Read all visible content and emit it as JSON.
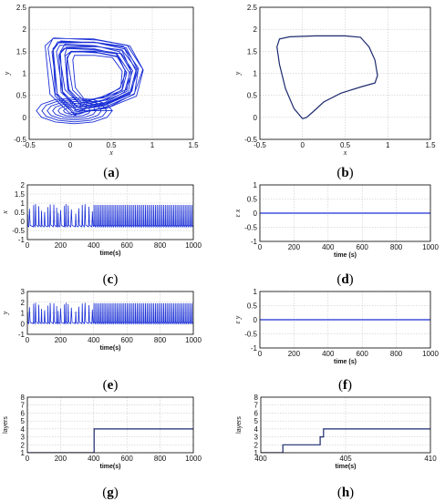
{
  "chart_data": [
    {
      "id": "a",
      "type": "line",
      "xlabel": "x",
      "ylabel": "y",
      "xlim": [
        -0.5,
        1.5
      ],
      "ylim": [
        -0.5,
        2.5
      ],
      "xticks": [
        "-0.5",
        "0",
        "0.5",
        "1",
        "1.5"
      ],
      "yticks": [
        "-0.5",
        "0",
        "0.5",
        "1",
        "1.5",
        "2",
        "2.5"
      ],
      "grid": true,
      "color": "#1a2fd6",
      "series": [
        {
          "name": "",
          "kind": "attractor",
          "values": [
            [
              0.0,
              0.0
            ],
            [
              -0.28,
              1.8
            ],
            [
              0.75,
              1.75
            ],
            [
              0.85,
              0.8
            ],
            [
              0.3,
              0.15
            ],
            [
              0.0,
              0.0
            ]
          ]
        }
      ]
    },
    {
      "id": "b",
      "type": "line",
      "xlabel": "x",
      "ylabel": "y",
      "xlim": [
        -0.5,
        1.5
      ],
      "ylim": [
        -0.5,
        2.5
      ],
      "xticks": [
        "-0.5",
        "0",
        "0.5",
        "1",
        "1.5"
      ],
      "yticks": [
        "-0.5",
        "0",
        "0.5",
        "1",
        "1.5",
        "2",
        "2.5"
      ],
      "grid": true,
      "color": "#1c2a6e",
      "series": [
        {
          "name": "",
          "values": [
            [
              0.0,
              -0.03
            ],
            [
              -0.1,
              0.2
            ],
            [
              -0.2,
              0.65
            ],
            [
              -0.27,
              1.2
            ],
            [
              -0.3,
              1.6
            ],
            [
              -0.27,
              1.78
            ],
            [
              -0.15,
              1.83
            ],
            [
              0.15,
              1.85
            ],
            [
              0.5,
              1.85
            ],
            [
              0.68,
              1.82
            ],
            [
              0.78,
              1.6
            ],
            [
              0.85,
              1.3
            ],
            [
              0.88,
              0.95
            ],
            [
              0.85,
              0.78
            ],
            [
              0.7,
              0.7
            ],
            [
              0.45,
              0.55
            ],
            [
              0.25,
              0.35
            ],
            [
              0.12,
              0.12
            ],
            [
              0.05,
              0.0
            ],
            [
              0.0,
              -0.03
            ]
          ]
        }
      ]
    },
    {
      "id": "c",
      "type": "line",
      "xlabel": "time(s)",
      "ylabel": "x",
      "xlim": [
        0,
        1000
      ],
      "ylim": [
        -1,
        2
      ],
      "xticks": [
        "0",
        "200",
        "400",
        "600",
        "800",
        "1000"
      ],
      "yticks": [
        "-1",
        "-0.5",
        "0",
        "0.5",
        "1",
        "1.5",
        "2"
      ],
      "grid": true,
      "color": "#1a2fd6",
      "series": [
        {
          "name": "",
          "kind": "oscillation",
          "segments": [
            {
              "t": [
                0,
                400
              ],
              "low": -0.3,
              "high": 0.95,
              "period": 19,
              "irregular": true
            },
            {
              "t": [
                400,
                1000
              ],
              "low": -0.3,
              "high": 0.9,
              "period": 10,
              "irregular": false
            }
          ]
        }
      ]
    },
    {
      "id": "d",
      "type": "line",
      "xlabel": "time (s)",
      "ylabel": "ε x",
      "xlim": [
        0,
        1000
      ],
      "ylim": [
        -1,
        1
      ],
      "xticks": [
        "0",
        "200",
        "400",
        "600",
        "800",
        "1000"
      ],
      "yticks": [
        "-1",
        "-0.5",
        "0",
        "0.5",
        "1"
      ],
      "grid": true,
      "color": "#1a2fd6",
      "series": [
        {
          "name": "",
          "values": [
            [
              0,
              0
            ],
            [
              1000,
              0
            ]
          ]
        }
      ]
    },
    {
      "id": "e",
      "type": "line",
      "xlabel": "time(s)",
      "ylabel": "y",
      "xlim": [
        0,
        1000
      ],
      "ylim": [
        -1,
        3
      ],
      "xticks": [
        "0",
        "200",
        "400",
        "600",
        "800",
        "1000"
      ],
      "yticks": [
        "-1",
        "0",
        "1",
        "2",
        "3"
      ],
      "grid": true,
      "color": "#1a2fd6",
      "series": [
        {
          "name": "",
          "kind": "oscillation",
          "segments": [
            {
              "t": [
                0,
                400
              ],
              "low": 0.0,
              "high": 1.95,
              "period": 19,
              "irregular": true
            },
            {
              "t": [
                400,
                1000
              ],
              "low": 0.0,
              "high": 1.9,
              "period": 10,
              "irregular": false
            }
          ]
        }
      ]
    },
    {
      "id": "f",
      "type": "line",
      "xlabel": "time (s)",
      "ylabel": "ε y",
      "xlim": [
        0,
        1000
      ],
      "ylim": [
        -1,
        1
      ],
      "xticks": [
        "0",
        "200",
        "400",
        "600",
        "800",
        "1000"
      ],
      "yticks": [
        "-1",
        "-0.5",
        "0",
        "0.5",
        "1"
      ],
      "grid": true,
      "color": "#1a2fd6",
      "series": [
        {
          "name": "",
          "values": [
            [
              0,
              0
            ],
            [
              1000,
              0
            ]
          ]
        }
      ]
    },
    {
      "id": "g",
      "type": "line",
      "xlabel": "time(s)",
      "ylabel": "layers",
      "xlim": [
        0,
        1000
      ],
      "ylim": [
        1,
        8
      ],
      "xticks": [
        "0",
        "200",
        "400",
        "600",
        "800",
        "1000"
      ],
      "yticks": [
        "1",
        "2",
        "3",
        "4",
        "5",
        "6",
        "7",
        "8"
      ],
      "grid": true,
      "color": "#1c2a6e",
      "series": [
        {
          "name": "",
          "values": [
            [
              0,
              1
            ],
            [
              402,
              1
            ],
            [
              402,
              4
            ],
            [
              1000,
              4
            ]
          ]
        }
      ]
    },
    {
      "id": "h",
      "type": "line",
      "xlabel": "time(s)",
      "ylabel": "layers",
      "xlim": [
        400,
        410
      ],
      "ylim": [
        1,
        8
      ],
      "xticks": [
        "400",
        "405",
        "410"
      ],
      "yticks": [
        "1",
        "2",
        "3",
        "4",
        "5",
        "6",
        "7",
        "8"
      ],
      "grid": true,
      "color": "#1c2a6e",
      "series": [
        {
          "name": "",
          "values": [
            [
              400,
              1
            ],
            [
              401.3,
              1
            ],
            [
              401.3,
              2
            ],
            [
              403.5,
              2
            ],
            [
              403.5,
              3
            ],
            [
              403.7,
              3
            ],
            [
              403.7,
              4
            ],
            [
              410,
              4
            ]
          ]
        }
      ]
    }
  ],
  "panel_labels": [
    "(a)",
    "(b)",
    "(c)",
    "(d)",
    "(e)",
    "(f)",
    "(g)",
    "(h)"
  ]
}
